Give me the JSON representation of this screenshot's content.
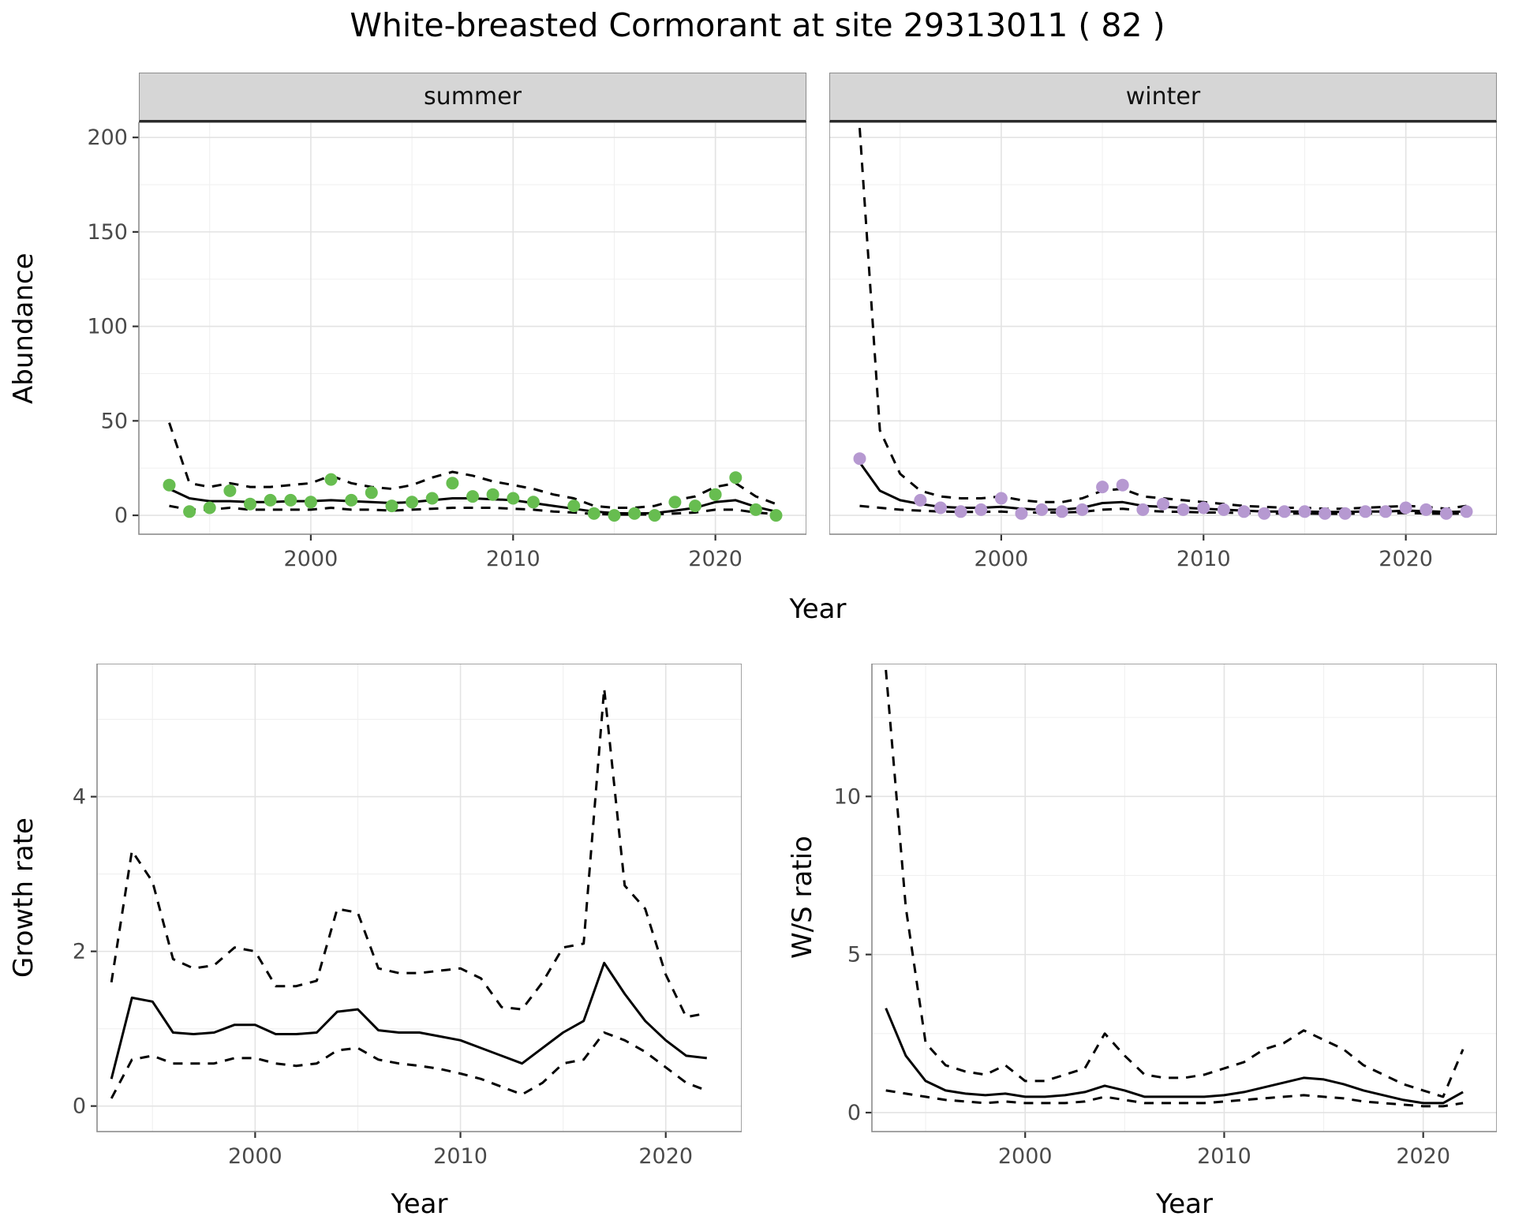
{
  "title": "White-breasted Cormorant at site 29313011 ( 82 )",
  "axis": {
    "x_label": "Year",
    "abundance_label": "Abundance",
    "growth_label": "Growth rate",
    "ws_label": "W/S ratio"
  },
  "colors": {
    "summer_point": "#67BD50",
    "winter_point": "#B699D1",
    "line": "#000000",
    "grid_major": "#E3E3E3",
    "grid_minor": "#F0F0F0",
    "panel_border": "#8C8C8C",
    "strip_bg": "#D6D6D6",
    "axis_text": "#4A4A4A",
    "tick_mark": "#333333"
  },
  "chart_data": [
    {
      "id": "abundance-summer",
      "type": "line",
      "facet_label": "summer",
      "xlabel": "Year",
      "ylabel": "Abundance",
      "xlim": [
        1991.5,
        2024.5
      ],
      "ylim": [
        -10,
        208
      ],
      "x_ticks": [
        2000,
        2010,
        2020
      ],
      "x_minor": [
        1995,
        2005,
        2015
      ],
      "y_ticks": [
        0,
        50,
        100,
        150,
        200
      ],
      "y_minor": [
        25,
        75,
        125,
        175
      ],
      "x": [
        1993,
        1994,
        1995,
        1996,
        1997,
        1998,
        1999,
        2000,
        2001,
        2002,
        2003,
        2004,
        2005,
        2006,
        2007,
        2008,
        2009,
        2010,
        2011,
        2012,
        2013,
        2014,
        2015,
        2016,
        2017,
        2018,
        2019,
        2020,
        2021,
        2022,
        2023
      ],
      "series": [
        {
          "name": "upper-ci",
          "style": "dashed",
          "color": "#000000",
          "values": [
            49,
            17,
            15,
            17,
            15,
            15,
            16,
            17,
            21,
            17,
            15,
            14,
            16,
            20,
            23,
            21,
            18,
            16,
            14,
            11,
            9,
            5,
            4,
            4,
            5,
            8,
            10,
            15,
            17,
            10,
            6
          ]
        },
        {
          "name": "lower-ci",
          "style": "dashed",
          "color": "#000000",
          "values": [
            5,
            3,
            3,
            4,
            3,
            3,
            3,
            3,
            4,
            3,
            3,
            2.5,
            3,
            3.5,
            4,
            4,
            4,
            3.5,
            3,
            2,
            1.5,
            0.7,
            0.4,
            0.4,
            0.5,
            1,
            1.5,
            3,
            3,
            1.5,
            0.7
          ]
        },
        {
          "name": "fit",
          "style": "solid",
          "color": "#000000",
          "values": [
            14,
            9,
            7.5,
            7.5,
            7,
            7,
            7.5,
            7.5,
            8,
            7.5,
            7,
            6.5,
            7,
            8,
            9,
            9,
            8.5,
            8,
            6.5,
            5,
            3.5,
            2,
            1.2,
            1,
            1.2,
            2.5,
            4,
            7,
            8,
            4.5,
            2
          ]
        },
        {
          "name": "observed",
          "style": "points",
          "color": "#67BD50",
          "values": [
            16,
            2,
            4,
            13,
            6,
            8,
            8,
            7,
            19,
            8,
            12,
            5,
            7,
            9,
            17,
            10,
            11,
            9,
            7,
            null,
            5,
            1,
            0,
            1,
            0,
            7,
            5,
            11,
            20,
            3,
            0
          ]
        }
      ]
    },
    {
      "id": "abundance-winter",
      "type": "line",
      "facet_label": "winter",
      "xlabel": "Year",
      "ylabel": "Abundance",
      "xlim": [
        1991.5,
        2024.5
      ],
      "ylim": [
        -10,
        208
      ],
      "x_ticks": [
        2000,
        2010,
        2020
      ],
      "x_minor": [
        1995,
        2005,
        2015
      ],
      "y_ticks": [
        0,
        50,
        100,
        150,
        200
      ],
      "y_minor": [
        25,
        75,
        125,
        175
      ],
      "x": [
        1993,
        1994,
        1995,
        1996,
        1997,
        1998,
        1999,
        2000,
        2001,
        2002,
        2003,
        2004,
        2005,
        2006,
        2007,
        2008,
        2009,
        2010,
        2011,
        2012,
        2013,
        2014,
        2015,
        2016,
        2017,
        2018,
        2019,
        2020,
        2021,
        2022,
        2023
      ],
      "series": [
        {
          "name": "upper-ci",
          "style": "dashed",
          "color": "#000000",
          "values": [
            205,
            45,
            22,
            13,
            10,
            9,
            9,
            10,
            8,
            7,
            7,
            9,
            13,
            14,
            10,
            9,
            8,
            7,
            6,
            5,
            4.5,
            4,
            4,
            3.5,
            3.5,
            4,
            4.5,
            5,
            4.5,
            3.5,
            5
          ]
        },
        {
          "name": "lower-ci",
          "style": "dashed",
          "color": "#000000",
          "values": [
            5,
            4,
            3,
            2.5,
            2,
            1.8,
            1.8,
            2,
            1.5,
            1.5,
            1.5,
            1.8,
            3,
            3.5,
            2.5,
            2,
            1.8,
            1.5,
            1.5,
            1.2,
            1,
            1,
            1,
            0.8,
            0.8,
            1,
            1,
            1.2,
            1,
            0.8,
            1
          ]
        },
        {
          "name": "fit",
          "style": "solid",
          "color": "#000000",
          "values": [
            28,
            13,
            8,
            6,
            4.5,
            4,
            4,
            4.5,
            3.5,
            3,
            3,
            4,
            6.5,
            7,
            5,
            4.5,
            4,
            3.5,
            3,
            2.5,
            2,
            2,
            2,
            1.8,
            1.8,
            2,
            2,
            2.5,
            2.2,
            1.8,
            2
          ]
        },
        {
          "name": "observed",
          "style": "points",
          "color": "#B699D1",
          "values": [
            30,
            null,
            null,
            8,
            4,
            2,
            3,
            9,
            1,
            3,
            2,
            3,
            15,
            16,
            3,
            6,
            3,
            4,
            3,
            2,
            1,
            2,
            2,
            1,
            1,
            2,
            2,
            4,
            3,
            1,
            2
          ]
        }
      ]
    },
    {
      "id": "growth-rate",
      "type": "line",
      "facet_label": "",
      "xlabel": "Year",
      "ylabel": "Growth rate",
      "xlim": [
        1992.3,
        2023.7
      ],
      "ylim": [
        -0.33,
        5.72
      ],
      "x_ticks": [
        2000,
        2010,
        2020
      ],
      "x_minor": [
        1995,
        2005,
        2015
      ],
      "y_ticks": [
        0,
        2,
        4
      ],
      "y_minor": [
        1,
        3,
        5
      ],
      "x": [
        1993,
        1994,
        1995,
        1996,
        1997,
        1998,
        1999,
        2000,
        2001,
        2002,
        2003,
        2004,
        2005,
        2006,
        2007,
        2008,
        2009,
        2010,
        2011,
        2012,
        2013,
        2014,
        2015,
        2016,
        2017,
        2018,
        2019,
        2020,
        2021,
        2022
      ],
      "series": [
        {
          "name": "upper-ci",
          "style": "dashed",
          "color": "#000000",
          "values": [
            1.6,
            3.3,
            2.9,
            1.9,
            1.78,
            1.82,
            2.05,
            2.0,
            1.55,
            1.55,
            1.62,
            2.55,
            2.5,
            1.78,
            1.72,
            1.72,
            1.75,
            1.78,
            1.65,
            1.28,
            1.25,
            1.6,
            2.05,
            2.1,
            5.4,
            2.85,
            2.55,
            1.7,
            1.15,
            1.2
          ]
        },
        {
          "name": "lower-ci",
          "style": "dashed",
          "color": "#000000",
          "values": [
            0.1,
            0.6,
            0.65,
            0.55,
            0.55,
            0.55,
            0.62,
            0.62,
            0.55,
            0.52,
            0.55,
            0.72,
            0.75,
            0.6,
            0.55,
            0.52,
            0.48,
            0.42,
            0.35,
            0.25,
            0.15,
            0.3,
            0.55,
            0.6,
            0.95,
            0.85,
            0.7,
            0.5,
            0.3,
            0.2
          ]
        },
        {
          "name": "fit",
          "style": "solid",
          "color": "#000000",
          "values": [
            0.35,
            1.4,
            1.35,
            0.95,
            0.93,
            0.95,
            1.05,
            1.05,
            0.93,
            0.93,
            0.95,
            1.22,
            1.25,
            0.98,
            0.95,
            0.95,
            0.9,
            0.85,
            0.75,
            0.65,
            0.55,
            0.75,
            0.95,
            1.1,
            1.85,
            1.45,
            1.1,
            0.85,
            0.65,
            0.62
          ]
        }
      ]
    },
    {
      "id": "ws-ratio",
      "type": "line",
      "facet_label": "",
      "xlabel": "Year",
      "ylabel": "W/S ratio",
      "xlim": [
        1992.3,
        2023.7
      ],
      "ylim": [
        -0.6,
        14.2
      ],
      "x_ticks": [
        2000,
        2010,
        2020
      ],
      "x_minor": [
        1995,
        2005,
        2015
      ],
      "y_ticks": [
        0,
        5,
        10
      ],
      "y_minor": [
        2.5,
        7.5,
        12.5
      ],
      "x": [
        1993,
        1994,
        1995,
        1996,
        1997,
        1998,
        1999,
        2000,
        2001,
        2002,
        2003,
        2004,
        2005,
        2006,
        2007,
        2008,
        2009,
        2010,
        2011,
        2012,
        2013,
        2014,
        2015,
        2016,
        2017,
        2018,
        2019,
        2020,
        2021,
        2022
      ],
      "series": [
        {
          "name": "upper-ci",
          "style": "dashed",
          "color": "#000000",
          "values": [
            14.0,
            6.5,
            2.2,
            1.5,
            1.3,
            1.2,
            1.5,
            1.0,
            1.0,
            1.2,
            1.4,
            2.5,
            1.8,
            1.2,
            1.1,
            1.1,
            1.2,
            1.4,
            1.6,
            2.0,
            2.2,
            2.6,
            2.3,
            2.0,
            1.5,
            1.2,
            0.9,
            0.7,
            0.5,
            2.0
          ]
        },
        {
          "name": "lower-ci",
          "style": "dashed",
          "color": "#000000",
          "values": [
            0.7,
            0.6,
            0.5,
            0.4,
            0.35,
            0.3,
            0.35,
            0.3,
            0.3,
            0.3,
            0.35,
            0.5,
            0.4,
            0.3,
            0.3,
            0.3,
            0.3,
            0.35,
            0.4,
            0.45,
            0.5,
            0.55,
            0.5,
            0.45,
            0.35,
            0.3,
            0.25,
            0.2,
            0.2,
            0.3
          ]
        },
        {
          "name": "fit",
          "style": "solid",
          "color": "#000000",
          "values": [
            3.3,
            1.8,
            1.0,
            0.7,
            0.6,
            0.55,
            0.6,
            0.5,
            0.5,
            0.55,
            0.65,
            0.85,
            0.7,
            0.5,
            0.5,
            0.5,
            0.5,
            0.55,
            0.65,
            0.8,
            0.95,
            1.1,
            1.05,
            0.9,
            0.7,
            0.55,
            0.4,
            0.3,
            0.3,
            0.65
          ]
        }
      ]
    }
  ]
}
